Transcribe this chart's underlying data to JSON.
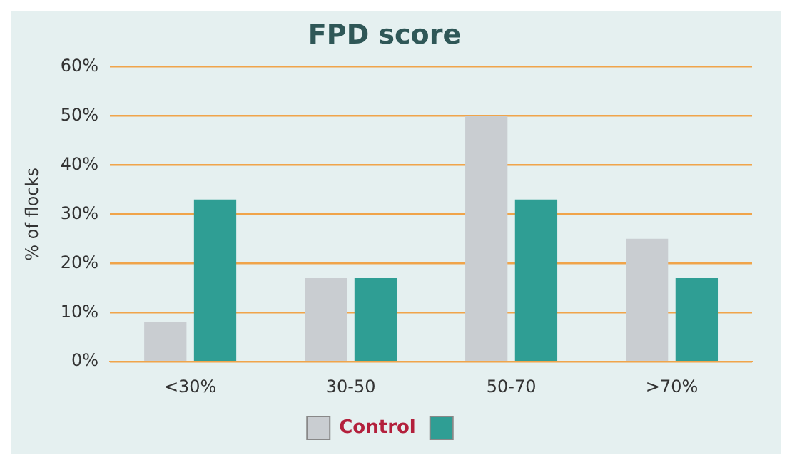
{
  "chart_data": {
    "type": "bar",
    "title": "FPD score",
    "ylabel": "% of flocks",
    "categories": [
      "<30%",
      "30-50",
      "50-70",
      ">70%"
    ],
    "series": [
      {
        "name": "Control",
        "color": "#c9cdd1",
        "values": [
          8,
          17,
          50,
          25
        ]
      },
      {
        "color": "#2f9e94",
        "values": [
          33,
          17,
          33,
          17
        ]
      }
    ],
    "ylim": [
      0,
      60
    ],
    "yticks": [
      {
        "value": 0,
        "label": "0%"
      },
      {
        "value": 10,
        "label": "10%"
      },
      {
        "value": 20,
        "label": "20%"
      },
      {
        "value": 30,
        "label": "30%"
      },
      {
        "value": 40,
        "label": "40%"
      },
      {
        "value": 50,
        "label": "50%"
      },
      {
        "value": 60,
        "label": "60%"
      }
    ],
    "grid": "y",
    "legend": "bottom"
  }
}
